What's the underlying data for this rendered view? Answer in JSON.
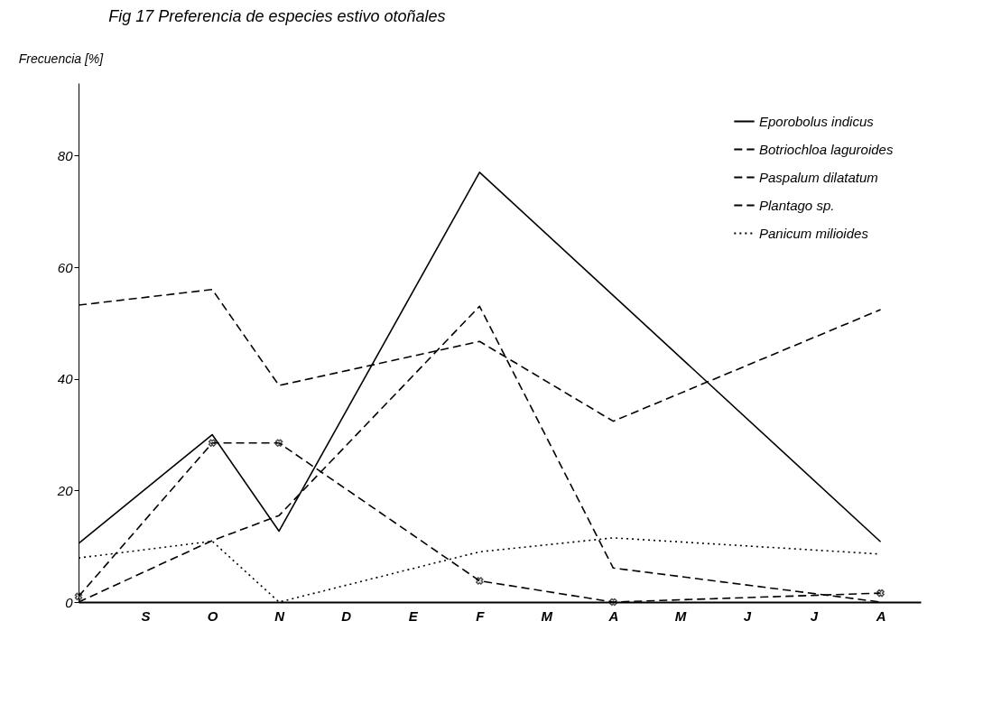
{
  "chart_data": {
    "type": "line",
    "title": "Fig 17  Preferencia de especies estivo otoñales",
    "ylabel": "Frecuencia [%]",
    "categories": [
      null,
      "S",
      "O",
      "N",
      "D",
      "E",
      "F",
      "M",
      "A",
      "M",
      "J",
      "J",
      "A"
    ],
    "ylim": [
      0,
      93
    ],
    "yticks": [
      0,
      20,
      40,
      60,
      80
    ],
    "series": [
      {
        "name": "Eporobolus indicus",
        "color": "#000000",
        "line_style": "solid",
        "values": [
          10.5,
          null,
          30,
          12.7,
          null,
          null,
          77,
          null,
          null,
          null,
          null,
          null,
          10.8
        ]
      },
      {
        "name": "Botriochloa laguroides",
        "color": "#000000",
        "line_style": "dashed",
        "values": [
          0,
          null,
          11,
          15.5,
          null,
          null,
          53,
          null,
          6.1,
          null,
          null,
          null,
          0
        ]
      },
      {
        "name": "Paspalum dilatatum",
        "color": "#000000",
        "line_style": "dashed",
        "marker": "cross",
        "values": [
          1,
          null,
          28.5,
          28.5,
          null,
          null,
          3.8,
          null,
          0,
          null,
          null,
          null,
          1.6
        ]
      },
      {
        "name": "Plantago sp.",
        "color": "#000000",
        "line_style": "dashed",
        "values": [
          53.2,
          null,
          56,
          38.8,
          null,
          null,
          46.7,
          null,
          32.4,
          null,
          null,
          null,
          52.4
        ]
      },
      {
        "name": "Panicum milioides",
        "color": "#000000",
        "line_style": "dotted",
        "values": [
          7.9,
          null,
          10.9,
          0,
          null,
          null,
          9,
          null,
          11.5,
          null,
          null,
          null,
          8.6
        ]
      }
    ],
    "grid": false,
    "legend": "top right"
  }
}
